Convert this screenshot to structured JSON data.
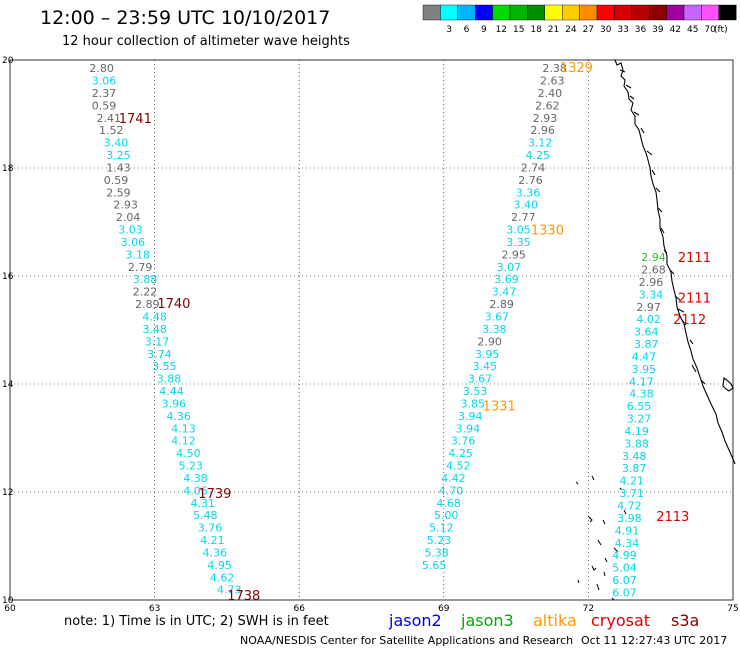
{
  "header": {
    "title": "12:00 – 23:59 UTC 10/10/2017",
    "subtitle": "12 hour collection of altimeter wave heights"
  },
  "colorbar": {
    "unit": "(ft)",
    "bins": [
      {
        "label": "",
        "color": "#808080"
      },
      {
        "label": "3",
        "color": "#00ffff"
      },
      {
        "label": "6",
        "color": "#00b4ff"
      },
      {
        "label": "9",
        "color": "#0000ff"
      },
      {
        "label": "12",
        "color": "#00dc00"
      },
      {
        "label": "15",
        "color": "#00b400"
      },
      {
        "label": "18",
        "color": "#008c00"
      },
      {
        "label": "21",
        "color": "#ffff00"
      },
      {
        "label": "24",
        "color": "#ffcc00"
      },
      {
        "label": "27",
        "color": "#ff8c00"
      },
      {
        "label": "30",
        "color": "#ff0000"
      },
      {
        "label": "33",
        "color": "#d20000"
      },
      {
        "label": "36",
        "color": "#b40000"
      },
      {
        "label": "39",
        "color": "#8c0000"
      },
      {
        "label": "42",
        "color": "#a000a0"
      },
      {
        "label": "45",
        "color": "#c864ff"
      },
      {
        "label": "70",
        "color": "#ff50ff"
      },
      {
        "label": "",
        "color": "#000000"
      }
    ]
  },
  "map": {
    "lon_range": [
      60,
      75
    ],
    "lat_range": [
      10,
      20
    ],
    "lon_ticks": [
      "60",
      "63",
      "66",
      "69",
      "72",
      "75"
    ],
    "lat_ticks": [
      "10",
      "12",
      "14",
      "16",
      "18",
      "20"
    ],
    "grid": "dotted"
  },
  "colors": {
    "gray": "#666666",
    "cyan": "#00d8ec",
    "green": "#30c030",
    "jason2": "#0000dd",
    "jason3": "#00aa00",
    "altika": "#ff9900",
    "cryosat": "#dd0000",
    "s3a": "#880000"
  },
  "tracks": [
    {
      "id": "s3a-west",
      "values": [
        {
          "lon": 61.9,
          "lat": 19.85,
          "text": "2.80",
          "c": "gray"
        },
        {
          "lon": 61.95,
          "lat": 19.62,
          "text": "3.06",
          "c": "cyan"
        },
        {
          "lon": 61.95,
          "lat": 19.39,
          "text": "2.37",
          "c": "gray"
        },
        {
          "lon": 61.95,
          "lat": 19.16,
          "text": "0.59",
          "c": "gray"
        },
        {
          "lon": 62.05,
          "lat": 18.93,
          "text": "2.41",
          "c": "gray"
        },
        {
          "lon": 62.1,
          "lat": 18.7,
          "text": "1.52",
          "c": "gray"
        },
        {
          "lon": 62.2,
          "lat": 18.47,
          "text": "3.40",
          "c": "cyan"
        },
        {
          "lon": 62.25,
          "lat": 18.24,
          "text": "3.25",
          "c": "cyan"
        },
        {
          "lon": 62.25,
          "lat": 18.01,
          "text": "1.43",
          "c": "gray"
        },
        {
          "lon": 62.2,
          "lat": 17.78,
          "text": "0.59",
          "c": "gray"
        },
        {
          "lon": 62.25,
          "lat": 17.55,
          "text": "2.59",
          "c": "gray"
        },
        {
          "lon": 62.4,
          "lat": 17.32,
          "text": "2.93",
          "c": "gray"
        },
        {
          "lon": 62.45,
          "lat": 17.09,
          "text": "2.04",
          "c": "gray"
        },
        {
          "lon": 62.5,
          "lat": 16.86,
          "text": "3.03",
          "c": "cyan"
        },
        {
          "lon": 62.55,
          "lat": 16.63,
          "text": "3.06",
          "c": "cyan"
        },
        {
          "lon": 62.65,
          "lat": 16.4,
          "text": "3.18",
          "c": "cyan"
        },
        {
          "lon": 62.7,
          "lat": 16.17,
          "text": "2.79",
          "c": "gray"
        },
        {
          "lon": 62.8,
          "lat": 15.94,
          "text": "3.88",
          "c": "cyan"
        },
        {
          "lon": 62.8,
          "lat": 15.71,
          "text": "2.22",
          "c": "gray"
        },
        {
          "lon": 62.85,
          "lat": 15.48,
          "text": "2.89",
          "c": "gray"
        },
        {
          "lon": 63.0,
          "lat": 15.25,
          "text": "4.48",
          "c": "cyan"
        },
        {
          "lon": 63.0,
          "lat": 15.02,
          "text": "3.48",
          "c": "cyan"
        },
        {
          "lon": 63.05,
          "lat": 14.79,
          "text": "3.17",
          "c": "cyan"
        },
        {
          "lon": 63.1,
          "lat": 14.56,
          "text": "3.74",
          "c": "cyan"
        },
        {
          "lon": 63.2,
          "lat": 14.33,
          "text": "3.55",
          "c": "cyan"
        },
        {
          "lon": 63.3,
          "lat": 14.1,
          "text": "3.88",
          "c": "cyan"
        },
        {
          "lon": 63.35,
          "lat": 13.87,
          "text": "4.44",
          "c": "cyan"
        },
        {
          "lon": 63.4,
          "lat": 13.64,
          "text": "3.96",
          "c": "cyan"
        },
        {
          "lon": 63.5,
          "lat": 13.41,
          "text": "4.36",
          "c": "cyan"
        },
        {
          "lon": 63.6,
          "lat": 13.18,
          "text": "4.13",
          "c": "cyan"
        },
        {
          "lon": 63.6,
          "lat": 12.95,
          "text": "4.12",
          "c": "cyan"
        },
        {
          "lon": 63.7,
          "lat": 12.72,
          "text": "4.50",
          "c": "cyan"
        },
        {
          "lon": 63.75,
          "lat": 12.49,
          "text": "5.23",
          "c": "cyan"
        },
        {
          "lon": 63.85,
          "lat": 12.26,
          "text": "4.38",
          "c": "cyan"
        },
        {
          "lon": 63.85,
          "lat": 12.03,
          "text": "4.06",
          "c": "cyan"
        },
        {
          "lon": 64.0,
          "lat": 11.8,
          "text": "4.31",
          "c": "cyan"
        },
        {
          "lon": 64.05,
          "lat": 11.57,
          "text": "5.48",
          "c": "cyan"
        },
        {
          "lon": 64.15,
          "lat": 11.34,
          "text": "3.76",
          "c": "cyan"
        },
        {
          "lon": 64.2,
          "lat": 11.11,
          "text": "4.21",
          "c": "cyan"
        },
        {
          "lon": 64.25,
          "lat": 10.88,
          "text": "4.36",
          "c": "cyan"
        },
        {
          "lon": 64.35,
          "lat": 10.65,
          "text": "4.95",
          "c": "cyan"
        },
        {
          "lon": 64.4,
          "lat": 10.42,
          "text": "4.62",
          "c": "cyan"
        },
        {
          "lon": 64.55,
          "lat": 10.19,
          "text": "4.73",
          "c": "cyan"
        }
      ]
    },
    {
      "id": "altika-mid",
      "values": [
        {
          "lon": 71.3,
          "lat": 19.85,
          "text": "2.38",
          "c": "gray"
        },
        {
          "lon": 71.25,
          "lat": 19.62,
          "text": "2.63",
          "c": "gray"
        },
        {
          "lon": 71.2,
          "lat": 19.39,
          "text": "2.40",
          "c": "gray"
        },
        {
          "lon": 71.15,
          "lat": 19.16,
          "text": "2.62",
          "c": "gray"
        },
        {
          "lon": 71.1,
          "lat": 18.93,
          "text": "2.93",
          "c": "gray"
        },
        {
          "lon": 71.05,
          "lat": 18.7,
          "text": "2.96",
          "c": "gray"
        },
        {
          "lon": 71.0,
          "lat": 18.47,
          "text": "3.12",
          "c": "cyan"
        },
        {
          "lon": 70.95,
          "lat": 18.24,
          "text": "4.25",
          "c": "cyan"
        },
        {
          "lon": 70.85,
          "lat": 18.01,
          "text": "2.74",
          "c": "gray"
        },
        {
          "lon": 70.8,
          "lat": 17.78,
          "text": "2.76",
          "c": "gray"
        },
        {
          "lon": 70.75,
          "lat": 17.55,
          "text": "3.36",
          "c": "cyan"
        },
        {
          "lon": 70.7,
          "lat": 17.32,
          "text": "3.40",
          "c": "cyan"
        },
        {
          "lon": 70.65,
          "lat": 17.09,
          "text": "2.77",
          "c": "gray"
        },
        {
          "lon": 70.55,
          "lat": 16.86,
          "text": "3.05",
          "c": "cyan"
        },
        {
          "lon": 70.55,
          "lat": 16.63,
          "text": "3.35",
          "c": "cyan"
        },
        {
          "lon": 70.45,
          "lat": 16.4,
          "text": "2.95",
          "c": "gray"
        },
        {
          "lon": 70.35,
          "lat": 16.17,
          "text": "3.07",
          "c": "cyan"
        },
        {
          "lon": 70.3,
          "lat": 15.94,
          "text": "3.69",
          "c": "cyan"
        },
        {
          "lon": 70.25,
          "lat": 15.71,
          "text": "3.47",
          "c": "cyan"
        },
        {
          "lon": 70.2,
          "lat": 15.48,
          "text": "2.89",
          "c": "gray"
        },
        {
          "lon": 70.1,
          "lat": 15.25,
          "text": "3.67",
          "c": "cyan"
        },
        {
          "lon": 70.05,
          "lat": 15.02,
          "text": "3.38",
          "c": "cyan"
        },
        {
          "lon": 69.95,
          "lat": 14.79,
          "text": "2.90",
          "c": "gray"
        },
        {
          "lon": 69.9,
          "lat": 14.56,
          "text": "3.95",
          "c": "cyan"
        },
        {
          "lon": 69.85,
          "lat": 14.33,
          "text": "3.45",
          "c": "cyan"
        },
        {
          "lon": 69.75,
          "lat": 14.1,
          "text": "3.67",
          "c": "cyan"
        },
        {
          "lon": 69.65,
          "lat": 13.87,
          "text": "3.53",
          "c": "cyan"
        },
        {
          "lon": 69.6,
          "lat": 13.64,
          "text": "3.85",
          "c": "cyan"
        },
        {
          "lon": 69.55,
          "lat": 13.41,
          "text": "3.94",
          "c": "cyan"
        },
        {
          "lon": 69.5,
          "lat": 13.18,
          "text": "3.94",
          "c": "cyan"
        },
        {
          "lon": 69.4,
          "lat": 12.95,
          "text": "3.76",
          "c": "cyan"
        },
        {
          "lon": 69.35,
          "lat": 12.72,
          "text": "4.25",
          "c": "cyan"
        },
        {
          "lon": 69.3,
          "lat": 12.49,
          "text": "4.52",
          "c": "cyan"
        },
        {
          "lon": 69.2,
          "lat": 12.26,
          "text": "4.42",
          "c": "cyan"
        },
        {
          "lon": 69.15,
          "lat": 12.03,
          "text": "4.70",
          "c": "cyan"
        },
        {
          "lon": 69.1,
          "lat": 11.8,
          "text": "4.68",
          "c": "cyan"
        },
        {
          "lon": 69.05,
          "lat": 11.57,
          "text": "5.00",
          "c": "cyan"
        },
        {
          "lon": 68.95,
          "lat": 11.34,
          "text": "5.12",
          "c": "cyan"
        },
        {
          "lon": 68.9,
          "lat": 11.11,
          "text": "5.23",
          "c": "cyan"
        },
        {
          "lon": 68.85,
          "lat": 10.88,
          "text": "5.38",
          "c": "cyan"
        },
        {
          "lon": 68.8,
          "lat": 10.65,
          "text": "5.65",
          "c": "cyan"
        }
      ]
    },
    {
      "id": "cryosat-east",
      "values": [
        {
          "lon": 73.35,
          "lat": 16.35,
          "text": "2.94",
          "c": "green"
        },
        {
          "lon": 73.35,
          "lat": 16.12,
          "text": "2.68",
          "c": "gray"
        },
        {
          "lon": 73.3,
          "lat": 15.89,
          "text": "2.96",
          "c": "gray"
        },
        {
          "lon": 73.3,
          "lat": 15.66,
          "text": "3.34",
          "c": "cyan"
        },
        {
          "lon": 73.25,
          "lat": 15.43,
          "text": "2.97",
          "c": "gray"
        },
        {
          "lon": 73.25,
          "lat": 15.2,
          "text": "4.02",
          "c": "cyan"
        },
        {
          "lon": 73.2,
          "lat": 14.97,
          "text": "3.64",
          "c": "cyan"
        },
        {
          "lon": 73.2,
          "lat": 14.74,
          "text": "3.87",
          "c": "cyan"
        },
        {
          "lon": 73.15,
          "lat": 14.51,
          "text": "4.47",
          "c": "cyan"
        },
        {
          "lon": 73.15,
          "lat": 14.28,
          "text": "3.95",
          "c": "cyan"
        },
        {
          "lon": 73.1,
          "lat": 14.05,
          "text": "4.17",
          "c": "cyan"
        },
        {
          "lon": 73.1,
          "lat": 13.82,
          "text": "4.38",
          "c": "cyan"
        },
        {
          "lon": 73.05,
          "lat": 13.59,
          "text": "6.55",
          "c": "cyan"
        },
        {
          "lon": 73.05,
          "lat": 13.36,
          "text": "3.27",
          "c": "cyan"
        },
        {
          "lon": 73.0,
          "lat": 13.13,
          "text": "4.19",
          "c": "cyan"
        },
        {
          "lon": 73.0,
          "lat": 12.9,
          "text": "3.88",
          "c": "cyan"
        },
        {
          "lon": 72.95,
          "lat": 12.67,
          "text": "3.48",
          "c": "cyan"
        },
        {
          "lon": 72.95,
          "lat": 12.44,
          "text": "3.87",
          "c": "cyan"
        },
        {
          "lon": 72.9,
          "lat": 12.21,
          "text": "4.21",
          "c": "cyan"
        },
        {
          "lon": 72.9,
          "lat": 11.98,
          "text": "3.71",
          "c": "cyan"
        },
        {
          "lon": 72.85,
          "lat": 11.75,
          "text": "4.72",
          "c": "cyan"
        },
        {
          "lon": 72.85,
          "lat": 11.52,
          "text": "3.98",
          "c": "cyan"
        },
        {
          "lon": 72.8,
          "lat": 11.29,
          "text": "4.91",
          "c": "cyan"
        },
        {
          "lon": 72.8,
          "lat": 11.06,
          "text": "4.34",
          "c": "cyan"
        },
        {
          "lon": 72.75,
          "lat": 10.83,
          "text": "4.99",
          "c": "cyan"
        },
        {
          "lon": 72.75,
          "lat": 10.6,
          "text": "5.04",
          "c": "cyan"
        },
        {
          "lon": 72.75,
          "lat": 10.37,
          "text": "6.07",
          "c": "cyan"
        },
        {
          "lon": 72.75,
          "lat": 10.14,
          "text": "6.07",
          "c": "cyan"
        }
      ]
    }
  ],
  "passes": [
    {
      "text": "1741",
      "lon": 62.6,
      "lat": 18.93,
      "c": "s3a"
    },
    {
      "text": "1740",
      "lon": 63.4,
      "lat": 15.5,
      "c": "s3a"
    },
    {
      "text": "1739",
      "lon": 64.25,
      "lat": 11.98,
      "c": "s3a"
    },
    {
      "text": "1738",
      "lon": 64.85,
      "lat": 10.09,
      "c": "s3a"
    },
    {
      "text": "1329",
      "lon": 71.75,
      "lat": 19.87,
      "c": "altika"
    },
    {
      "text": "1330",
      "lon": 71.15,
      "lat": 16.86,
      "c": "altika"
    },
    {
      "text": "1331",
      "lon": 70.15,
      "lat": 13.6,
      "c": "altika"
    },
    {
      "text": "2111",
      "lon": 74.2,
      "lat": 16.35,
      "c": "cryosat"
    },
    {
      "text": "2111",
      "lon": 74.2,
      "lat": 15.6,
      "c": "cryosat"
    },
    {
      "text": "2112",
      "lon": 74.1,
      "lat": 15.2,
      "c": "cryosat"
    },
    {
      "text": "2113",
      "lon": 73.75,
      "lat": 11.56,
      "c": "cryosat"
    }
  ],
  "note": {
    "text": "note:  1) Time is in UTC;  2) SWH is in feet"
  },
  "satellites": [
    {
      "name": "jason2",
      "c": "jason2"
    },
    {
      "name": "jason3",
      "c": "jason3"
    },
    {
      "name": "altika",
      "c": "altika"
    },
    {
      "name": "cryosat",
      "c": "cryosat"
    },
    {
      "name": "s3a",
      "c": "s3a"
    }
  ],
  "footer": {
    "credit": "NOAA/NESDIS Center for Satellite Applications and Research",
    "timestamp": "Oct 11 12:27:43 UTC 2017"
  }
}
